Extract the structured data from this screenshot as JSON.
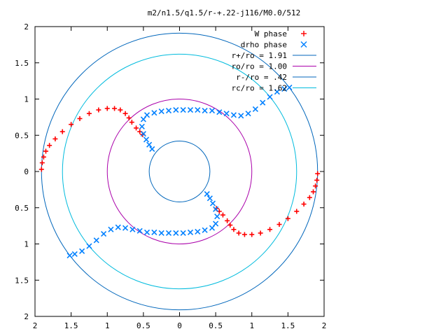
{
  "chart_data": {
    "type": "scatter",
    "title": "m2/n1.5/q1.5/r-+.22-j116/M0.0/512",
    "xlim": [
      -2,
      2
    ],
    "ylim": [
      -2,
      2
    ],
    "grid": false,
    "legend_position": "top-right",
    "x_ticks": [
      -2,
      -1.5,
      -1,
      -0.5,
      0,
      0.5,
      1,
      1.5,
      2
    ],
    "y_ticks": [
      -2,
      -1.5,
      -1,
      -0.5,
      0,
      0.5,
      1,
      1.5,
      2
    ],
    "x_tick_labels": [
      "2",
      "1.5",
      "1",
      "0.5",
      "0",
      "0.5",
      "1",
      "1.5",
      "2"
    ],
    "y_tick_labels": [
      "2",
      "1.5",
      "1",
      "0.5",
      "0",
      "0.5",
      "1",
      "1.5",
      "2"
    ],
    "series": [
      {
        "name": "W phase",
        "kind": "points",
        "marker": "plus",
        "color": "#ff0000",
        "x": [
          -1.91,
          -1.9,
          -1.88,
          -1.85,
          -1.8,
          -1.72,
          -1.62,
          -1.5,
          -1.38,
          -1.25,
          -1.12,
          -1.0,
          -0.9,
          -0.82,
          -0.75,
          -0.7,
          -0.66,
          -0.6,
          -0.55,
          -0.51,
          1.91,
          1.9,
          1.88,
          1.85,
          1.8,
          1.72,
          1.62,
          1.5,
          1.38,
          1.25,
          1.12,
          1.0,
          0.9,
          0.82,
          0.75,
          0.7,
          0.66,
          0.6,
          0.55,
          0.51
        ],
        "y": [
          0.03,
          0.12,
          0.2,
          0.28,
          0.36,
          0.45,
          0.55,
          0.65,
          0.73,
          0.8,
          0.85,
          0.87,
          0.87,
          0.85,
          0.8,
          0.74,
          0.68,
          0.6,
          0.55,
          0.51,
          -0.03,
          -0.12,
          -0.2,
          -0.28,
          -0.36,
          -0.45,
          -0.55,
          -0.65,
          -0.73,
          -0.8,
          -0.85,
          -0.87,
          -0.87,
          -0.85,
          -0.8,
          -0.74,
          -0.68,
          -0.6,
          -0.55,
          -0.51
        ]
      },
      {
        "name": "drho phase",
        "kind": "points",
        "marker": "cross",
        "color": "#0080ff",
        "x": [
          1.52,
          1.45,
          1.35,
          1.25,
          1.15,
          1.05,
          0.95,
          0.85,
          0.75,
          0.65,
          0.55,
          0.45,
          0.35,
          0.25,
          0.15,
          0.05,
          -0.05,
          -0.15,
          -0.25,
          -0.35,
          -0.45,
          -0.5,
          -0.52,
          -0.5,
          -0.46,
          -0.42,
          -0.38,
          -1.52,
          -1.45,
          -1.35,
          -1.25,
          -1.15,
          -1.05,
          -0.95,
          -0.85,
          -0.75,
          -0.65,
          -0.55,
          -0.45,
          -0.35,
          -0.25,
          -0.15,
          -0.05,
          0.05,
          0.15,
          0.25,
          0.35,
          0.45,
          0.5,
          0.52,
          0.5,
          0.46,
          0.42,
          0.38
        ],
        "y": [
          1.16,
          1.14,
          1.1,
          1.03,
          0.95,
          0.86,
          0.8,
          0.77,
          0.78,
          0.8,
          0.82,
          0.84,
          0.84,
          0.85,
          0.85,
          0.85,
          0.85,
          0.84,
          0.83,
          0.81,
          0.78,
          0.72,
          0.62,
          0.52,
          0.44,
          0.37,
          0.31,
          -1.16,
          -1.14,
          -1.1,
          -1.03,
          -0.95,
          -0.86,
          -0.8,
          -0.77,
          -0.78,
          -0.8,
          -0.82,
          -0.84,
          -0.84,
          -0.85,
          -0.85,
          -0.85,
          -0.85,
          -0.84,
          -0.83,
          -0.81,
          -0.78,
          -0.72,
          -0.62,
          -0.52,
          -0.44,
          -0.37,
          -0.31
        ]
      },
      {
        "name": "r+/ro = 1.91",
        "kind": "circle",
        "radius": 1.91,
        "color": "#0066bb"
      },
      {
        "name": "ro/ro = 1.00",
        "kind": "circle",
        "radius": 1.0,
        "color": "#aa00aa"
      },
      {
        "name": "r-/ro = .42",
        "kind": "circle",
        "radius": 0.42,
        "color": "#0066bb"
      },
      {
        "name": "rc/ro = 1.62",
        "kind": "circle",
        "radius": 1.62,
        "color": "#00bbdd"
      }
    ],
    "legend": [
      {
        "label": "W phase",
        "symbol": "plus",
        "color": "#ff0000"
      },
      {
        "label": "drho phase",
        "symbol": "cross",
        "color": "#0080ff"
      },
      {
        "label": "r+/ro = 1.91",
        "symbol": "line",
        "color": "#0066bb"
      },
      {
        "label": "ro/ro = 1.00",
        "symbol": "line",
        "color": "#aa00aa"
      },
      {
        "label": "r-/ro = .42",
        "symbol": "line",
        "color": "#0066bb"
      },
      {
        "label": "rc/ro = 1.62",
        "symbol": "line",
        "color": "#00bbdd"
      }
    ]
  }
}
